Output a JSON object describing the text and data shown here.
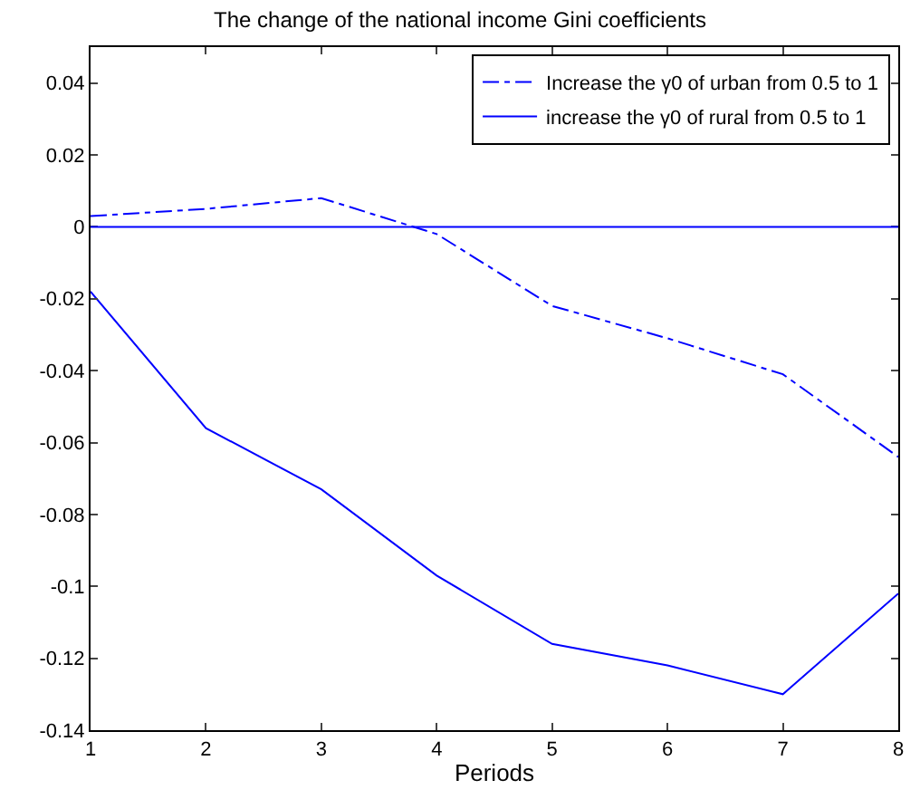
{
  "chart_data": {
    "type": "line",
    "title": "The change of the national income Gini coefficients",
    "xlabel": "Periods",
    "x": [
      1,
      2,
      3,
      4,
      5,
      6,
      7,
      8
    ],
    "series": [
      {
        "name": "Increase the γ0 of urban from 0.5 to 1",
        "color": "#0000ff",
        "line_style": "dashdot",
        "values": [
          0.003,
          0.005,
          0.008,
          -0.002,
          -0.022,
          -0.031,
          -0.041,
          -0.064
        ]
      },
      {
        "name": "increase the γ0 of rural from 0.5 to 1",
        "color": "#0000ff",
        "line_style": "solid",
        "values": [
          -0.018,
          -0.056,
          -0.073,
          -0.097,
          -0.116,
          -0.122,
          -0.13,
          -0.102
        ]
      }
    ],
    "ref_lines": [
      {
        "axis": "y",
        "value": 0,
        "color": "#0000ff",
        "line_style": "solid"
      }
    ],
    "xlim": [
      1,
      8
    ],
    "xticks": [
      1,
      2,
      3,
      4,
      5,
      6,
      7,
      8
    ],
    "ylim": [
      -0.14,
      0.05
    ],
    "yticks": [
      -0.14,
      -0.12,
      -0.1,
      -0.08,
      -0.06,
      -0.04,
      -0.02,
      0,
      0.02,
      0.04
    ],
    "grid": false,
    "legend": "top right",
    "marker": "none"
  }
}
